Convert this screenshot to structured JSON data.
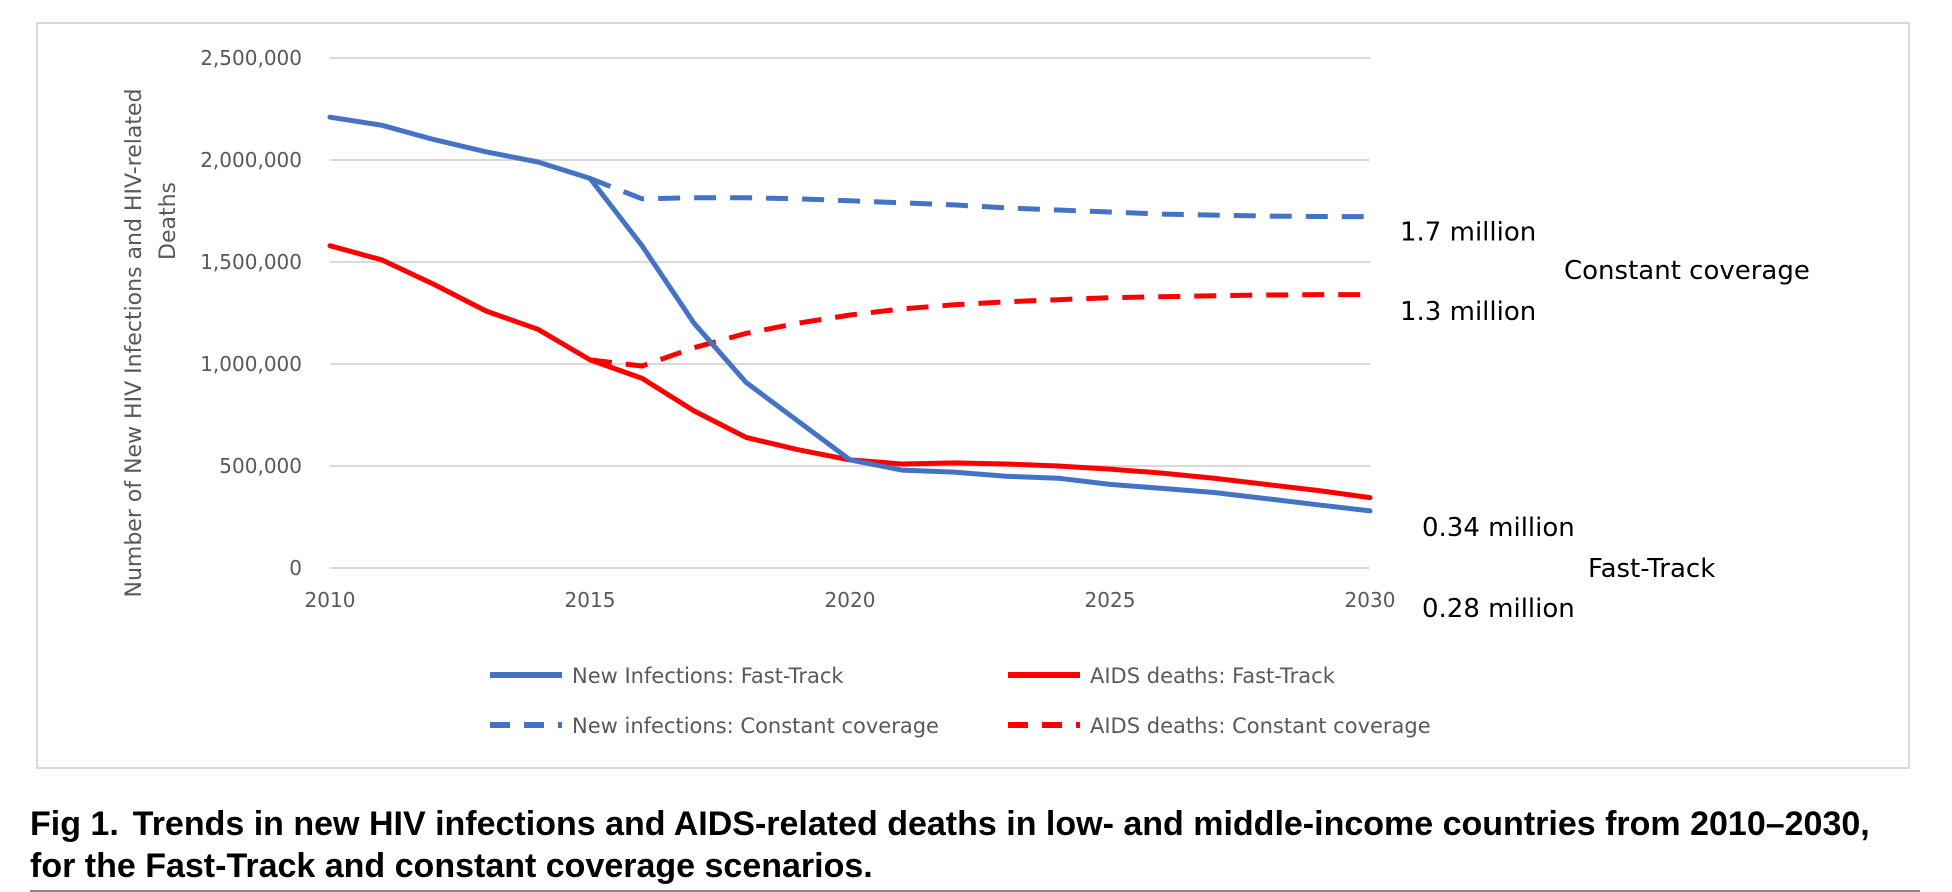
{
  "figure": {
    "fig_label": "Fig 1.",
    "caption": "Trends in new HIV infections and AIDS-related deaths in low- and middle-income countries from 2010–2030, for the Fast-Track and constant coverage scenarios."
  },
  "chart_data": {
    "type": "line",
    "title": "",
    "xlabel": "",
    "ylabel": "Number of New HIV Infections and HIV-related Deaths",
    "xlim": [
      2010,
      2030
    ],
    "ylim": [
      0,
      2500000
    ],
    "x_ticks": [
      "2010",
      "2015",
      "2020",
      "2025",
      "2030"
    ],
    "y_ticks": [
      "0",
      "500,000",
      "1,000,000",
      "1,500,000",
      "2,000,000",
      "2,500,000"
    ],
    "grid": "horizontal",
    "legend_position": "bottom",
    "series": [
      {
        "name": "New Infections: Fast-Track",
        "color": "#4472C4",
        "style": "solid",
        "x": [
          2010,
          2011,
          2012,
          2013,
          2014,
          2015,
          2016,
          2017,
          2018,
          2019,
          2020,
          2021,
          2022,
          2023,
          2024,
          2025,
          2026,
          2027,
          2028,
          2029,
          2030
        ],
        "values": [
          2210000,
          2170000,
          2100000,
          2040000,
          1990000,
          1910000,
          1580000,
          1200000,
          910000,
          720000,
          530000,
          480000,
          470000,
          450000,
          440000,
          410000,
          390000,
          370000,
          340000,
          310000,
          280000
        ]
      },
      {
        "name": "AIDS deaths: Fast-Track",
        "color": "#FF0000",
        "style": "solid",
        "x": [
          2010,
          2011,
          2012,
          2013,
          2014,
          2015,
          2016,
          2017,
          2018,
          2019,
          2020,
          2021,
          2022,
          2023,
          2024,
          2025,
          2026,
          2027,
          2028,
          2029,
          2030
        ],
        "values": [
          1580000,
          1510000,
          1390000,
          1260000,
          1170000,
          1020000,
          930000,
          770000,
          640000,
          580000,
          530000,
          510000,
          515000,
          510000,
          500000,
          485000,
          465000,
          440000,
          410000,
          380000,
          345000
        ]
      },
      {
        "name": "New infections: Constant coverage",
        "color": "#4472C4",
        "style": "dashed",
        "x": [
          2015,
          2016,
          2017,
          2018,
          2019,
          2020,
          2021,
          2022,
          2023,
          2024,
          2025,
          2026,
          2027,
          2028,
          2029,
          2030
        ],
        "values": [
          1910000,
          1810000,
          1815000,
          1815000,
          1810000,
          1800000,
          1790000,
          1780000,
          1765000,
          1755000,
          1745000,
          1735000,
          1730000,
          1725000,
          1723000,
          1722000
        ]
      },
      {
        "name": "AIDS deaths: Constant coverage",
        "color": "#FF0000",
        "style": "dashed",
        "x": [
          2015,
          2016,
          2017,
          2018,
          2019,
          2020,
          2021,
          2022,
          2023,
          2024,
          2025,
          2026,
          2027,
          2028,
          2029,
          2030
        ],
        "values": [
          1020000,
          990000,
          1080000,
          1150000,
          1200000,
          1240000,
          1270000,
          1290000,
          1305000,
          1315000,
          1325000,
          1330000,
          1335000,
          1338000,
          1340000,
          1340000
        ]
      }
    ],
    "annotations": [
      {
        "text": "1.7 million",
        "x": 2030,
        "y": 1650000,
        "offset": "right-near"
      },
      {
        "text": "Constant coverage",
        "x": 2030,
        "y": 1460000,
        "offset": "right-far"
      },
      {
        "text": "1.3 million",
        "x": 2030,
        "y": 1260000,
        "offset": "right-near"
      },
      {
        "text": "0.34 million",
        "x": 2030,
        "y": 200000,
        "offset": "right-mid"
      },
      {
        "text": "Fast-Track",
        "x": 2030,
        "y": 0,
        "offset": "right-far2"
      },
      {
        "text": "0.28 million",
        "x": 2030,
        "y": -195000,
        "offset": "right-mid"
      }
    ]
  }
}
